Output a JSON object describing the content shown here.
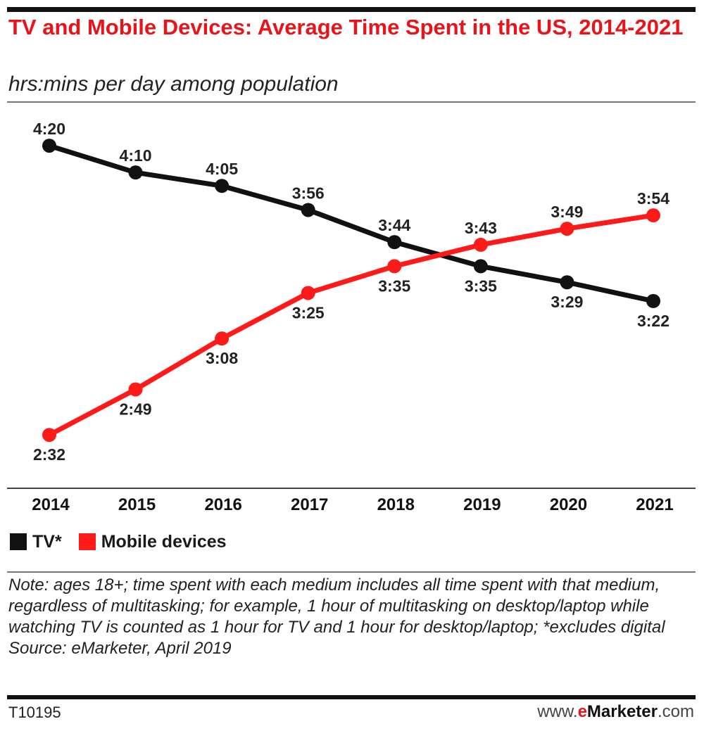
{
  "title": "TV and Mobile Devices: Average Time Spent in the US, 2014-2021",
  "subtitle": "hrs:mins per day among population",
  "chart_data": {
    "type": "line",
    "x": [
      2014,
      2015,
      2016,
      2017,
      2018,
      2019,
      2020,
      2021
    ],
    "x_tick_labels": [
      "2014",
      "2015",
      "2016",
      "2017",
      "2018",
      "2019",
      "2020",
      "2021"
    ],
    "y_unit": "hrs:mins per day",
    "y_range_minutes": [
      120,
      275
    ],
    "grid": false,
    "legend_position": "bottom-left",
    "series": [
      {
        "name": "TV*",
        "color": "#111111",
        "values_minutes": [
          260,
          250,
          245,
          236,
          224,
          215,
          209,
          202
        ],
        "labels": [
          "4:20",
          "4:10",
          "4:05",
          "3:56",
          "3:44",
          "3:35",
          "3:29",
          "3:22"
        ]
      },
      {
        "name": "Mobile devices",
        "color": "#ff1a1a",
        "values_minutes": [
          152,
          169,
          188,
          205,
          215,
          223,
          229,
          234
        ],
        "labels": [
          "2:32",
          "2:49",
          "3:08",
          "3:25",
          "3:35",
          "3:43",
          "3:49",
          "3:54"
        ]
      }
    ]
  },
  "legend": [
    {
      "label": "TV*",
      "color": "#111111"
    },
    {
      "label": "Mobile devices",
      "color": "#ff1a1a"
    }
  ],
  "notes": {
    "note": "Note: ages 18+; time spent with each medium includes all time spent with that medium, regardless of multitasking; for example, 1 hour of multitasking on desktop/laptop while watching TV is counted as 1 hour for TV and 1 hour for desktop/laptop; *excludes digital",
    "source": "Source: eMarketer, April 2019"
  },
  "footer": {
    "chart_id": "T10195",
    "logo_prefix": "www.",
    "logo_e": "e",
    "logo_brand": "Marketer",
    "logo_suffix": ".com"
  }
}
